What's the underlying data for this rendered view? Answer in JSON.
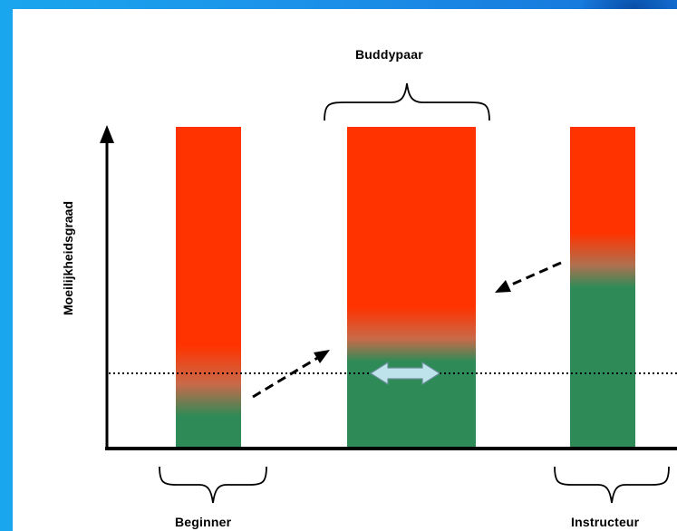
{
  "labels": {
    "top_group": "Buddypaar",
    "left_group": "Beginner",
    "right_group": "Instructeur",
    "y_axis": "Moeilijkheidsgraad"
  },
  "colors": {
    "difficult": "#ff3300",
    "easy": "#2e8b57",
    "arrow_fill": "#bfe3ea",
    "background": "#1a8fe6"
  }
}
